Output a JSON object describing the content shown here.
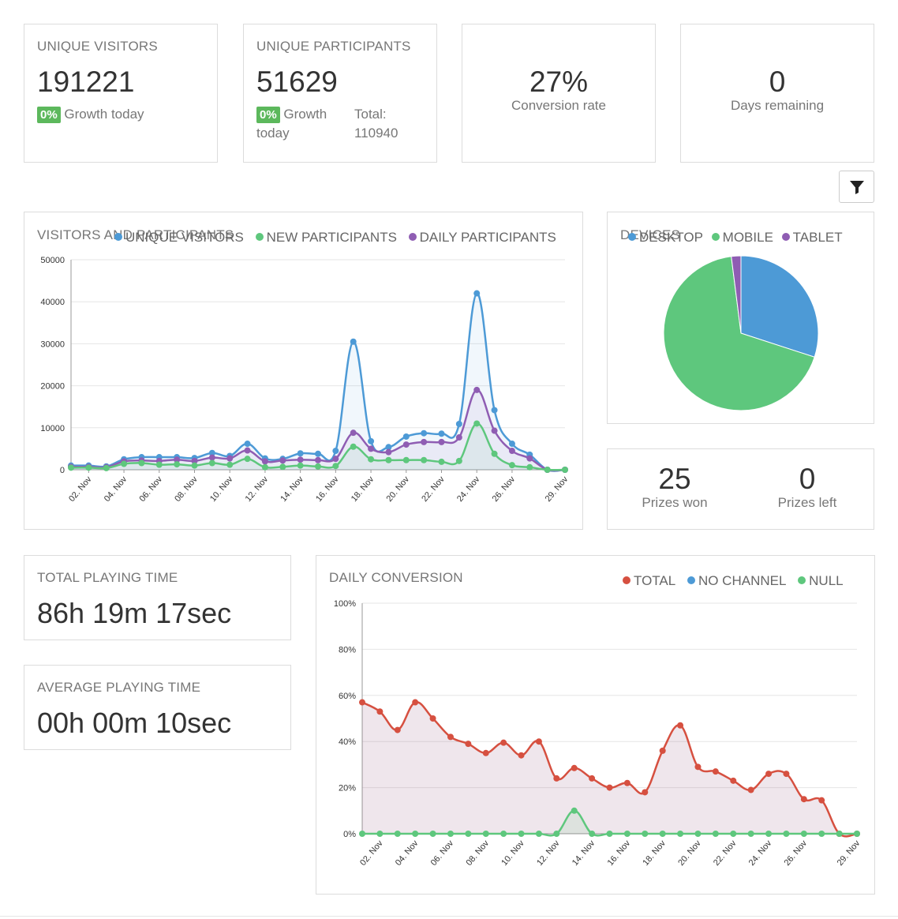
{
  "stats": {
    "unique_visitors": {
      "title": "UNIQUE VISITORS",
      "value": "191221",
      "badge": "0%",
      "growth_label": "Growth today"
    },
    "unique_participants": {
      "title": "UNIQUE PARTICIPANTS",
      "value": "51629",
      "badge": "0%",
      "growth_label": "Growth",
      "growth_label_2": "today",
      "total_label": "Total:",
      "total_value": "110940"
    },
    "conversion": {
      "value": "27%",
      "label": "Conversion rate"
    },
    "days": {
      "value": "0",
      "label": "Days remaining"
    }
  },
  "filter": {
    "icon": "filter-icon",
    "color": "#222222"
  },
  "visitors_chart": {
    "title": "VISITORS AND PARTICIPANTS",
    "legend": [
      {
        "label": "UNIQUE VISITORS",
        "color": "#4d9ad6"
      },
      {
        "label": "NEW PARTICIPANTS",
        "color": "#5ec77d"
      },
      {
        "label": "DAILY PARTICIPANTS",
        "color": "#8f5db3"
      }
    ]
  },
  "devices": {
    "title": "DEVICES",
    "legend": [
      {
        "label": "DESKTOP",
        "color": "#4d9ad6"
      },
      {
        "label": "MOBILE",
        "color": "#5ec77d"
      },
      {
        "label": "TABLET",
        "color": "#8f5db3"
      }
    ]
  },
  "prizes": {
    "won_value": "25",
    "won_label": "Prizes won",
    "left_value": "0",
    "left_label": "Prizes left"
  },
  "playing": {
    "total_title": "TOTAL PLAYING TIME",
    "total_value": "86h 19m 17sec",
    "avg_title": "AVERAGE PLAYING TIME",
    "avg_value": "00h 00m 10sec"
  },
  "conversion_chart": {
    "title": "DAILY CONVERSION",
    "legend": [
      {
        "label": "TOTAL",
        "color": "#d65040"
      },
      {
        "label": "NO CHANNEL",
        "color": "#4d9ad6"
      },
      {
        "label": "NULL",
        "color": "#5ec77d"
      }
    ]
  },
  "chart_data": [
    {
      "type": "area",
      "title": "VISITORS AND PARTICIPANTS",
      "x": [
        "01. Nov",
        "02. Nov",
        "03. Nov",
        "04. Nov",
        "05. Nov",
        "06. Nov",
        "07. Nov",
        "08. Nov",
        "09. Nov",
        "10. Nov",
        "11. Nov",
        "12. Nov",
        "13. Nov",
        "14. Nov",
        "15. Nov",
        "16. Nov",
        "17. Nov",
        "18. Nov",
        "19. Nov",
        "20. Nov",
        "21. Nov",
        "22. Nov",
        "23. Nov",
        "24. Nov",
        "25. Nov",
        "26. Nov",
        "27. Nov",
        "28. Nov",
        "29. Nov"
      ],
      "xticks": [
        "02. Nov",
        "04. Nov",
        "06. Nov",
        "08. Nov",
        "10. Nov",
        "12. Nov",
        "14. Nov",
        "16. Nov",
        "18. Nov",
        "20. Nov",
        "22. Nov",
        "24. Nov",
        "26. Nov",
        "29. Nov"
      ],
      "ylim": [
        0,
        50000
      ],
      "yticks": [
        0,
        10000,
        20000,
        30000,
        40000,
        50000
      ],
      "grid": true,
      "legend_position": "top",
      "series": [
        {
          "name": "UNIQUE VISITORS",
          "color": "#4d9ad6",
          "values": [
            1000,
            1000,
            800,
            2500,
            3000,
            3000,
            3000,
            2800,
            4000,
            3300,
            6200,
            2700,
            2600,
            3900,
            3800,
            4500,
            30500,
            6800,
            5400,
            7900,
            8700,
            8600,
            10900,
            42000,
            14200,
            6200,
            3600,
            0,
            0
          ]
        },
        {
          "name": "DAILY PARTICIPANTS",
          "color": "#8f5db3",
          "values": [
            700,
            700,
            600,
            2000,
            2200,
            2100,
            2400,
            2100,
            2900,
            2700,
            4600,
            2000,
            2200,
            2400,
            2300,
            2600,
            8800,
            5000,
            4200,
            6000,
            6600,
            6600,
            7700,
            19000,
            9300,
            4500,
            2700,
            0,
            0
          ]
        },
        {
          "name": "NEW PARTICIPANTS",
          "color": "#5ec77d",
          "values": [
            500,
            500,
            400,
            1400,
            1600,
            1200,
            1300,
            1000,
            1600,
            1200,
            2600,
            600,
            700,
            1000,
            800,
            900,
            5500,
            2500,
            2300,
            2300,
            2300,
            1900,
            2100,
            11000,
            3800,
            1100,
            600,
            0,
            0
          ]
        }
      ]
    },
    {
      "type": "pie",
      "title": "DEVICES",
      "categories": [
        "DESKTOP",
        "MOBILE",
        "TABLET"
      ],
      "values": [
        30,
        68,
        2
      ],
      "colors": [
        "#4d9ad6",
        "#5ec77d",
        "#8f5db3"
      ],
      "legend_position": "top"
    },
    {
      "type": "area",
      "title": "DAILY CONVERSION",
      "x": [
        "01. Nov",
        "02. Nov",
        "03. Nov",
        "04. Nov",
        "05. Nov",
        "06. Nov",
        "07. Nov",
        "08. Nov",
        "09. Nov",
        "10. Nov",
        "11. Nov",
        "12. Nov",
        "13. Nov",
        "14. Nov",
        "15. Nov",
        "16. Nov",
        "17. Nov",
        "18. Nov",
        "19. Nov",
        "20. Nov",
        "21. Nov",
        "22. Nov",
        "23. Nov",
        "24. Nov",
        "25. Nov",
        "26. Nov",
        "27. Nov",
        "28. Nov",
        "29. Nov"
      ],
      "xticks": [
        "02. Nov",
        "04. Nov",
        "06. Nov",
        "08. Nov",
        "10. Nov",
        "12. Nov",
        "14. Nov",
        "16. Nov",
        "18. Nov",
        "20. Nov",
        "22. Nov",
        "24. Nov",
        "26. Nov",
        "29. Nov"
      ],
      "ylim": [
        0,
        100
      ],
      "yticks": [
        "0%",
        "20%",
        "40%",
        "60%",
        "80%",
        "100%"
      ],
      "grid": true,
      "legend_position": "top-right",
      "series": [
        {
          "name": "TOTAL",
          "color": "#d65040",
          "values": [
            57,
            53,
            45,
            57,
            50,
            42,
            39,
            35,
            39.5,
            34,
            40,
            24,
            28.5,
            24,
            20,
            22,
            18,
            36,
            47,
            29,
            27,
            23,
            19,
            26,
            26,
            15,
            14.5,
            0,
            0
          ]
        },
        {
          "name": "NULL",
          "color": "#5ec77d",
          "values": [
            0,
            0,
            0,
            0,
            0,
            0,
            0,
            0,
            0,
            0,
            0,
            0,
            10,
            0,
            0,
            0,
            0,
            0,
            0,
            0,
            0,
            0,
            0,
            0,
            0,
            0,
            0,
            0,
            0
          ]
        }
      ]
    }
  ]
}
